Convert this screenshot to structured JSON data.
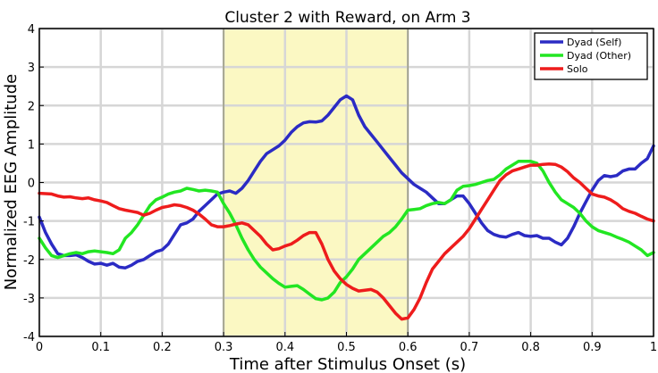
{
  "chart_data": {
    "type": "line",
    "title": "Cluster 2 with Reward, on Arm 3",
    "xlabel": "Time after Stimulus Onset (s)",
    "ylabel": "Normalized EEG Amplitude",
    "xlim": [
      0,
      1
    ],
    "ylim": [
      -4,
      4
    ],
    "x_ticks": [
      0,
      0.1,
      0.2,
      0.3,
      0.4,
      0.5,
      0.6,
      0.7,
      0.8,
      0.9,
      1
    ],
    "x_tick_labels": [
      "0",
      "0.1",
      "0.2",
      "0.3",
      "0.4",
      "0.5",
      "0.6",
      "0.7",
      "0.8",
      "0.9",
      "1"
    ],
    "y_ticks": [
      -4,
      -3,
      -2,
      -1,
      0,
      1,
      2,
      3,
      4
    ],
    "y_tick_labels": [
      "-4",
      "-3",
      "-2",
      "-1",
      "0",
      "1",
      "2",
      "3",
      "4"
    ],
    "grid": true,
    "legend_position": "top-right",
    "highlight_region": {
      "x_start": 0.3,
      "x_end": 0.6,
      "color": "#fbf8c3"
    },
    "series": [
      {
        "name": "Dyad (Self)",
        "color": "#2b2bc4",
        "points": [
          [
            0,
            -0.9
          ],
          [
            0.01,
            -1.3
          ],
          [
            0.02,
            -1.6
          ],
          [
            0.03,
            -1.85
          ],
          [
            0.04,
            -1.9
          ],
          [
            0.05,
            -1.9
          ],
          [
            0.06,
            -1.88
          ],
          [
            0.07,
            -1.95
          ],
          [
            0.08,
            -2.05
          ],
          [
            0.09,
            -2.12
          ],
          [
            0.1,
            -2.1
          ],
          [
            0.11,
            -2.15
          ],
          [
            0.12,
            -2.1
          ],
          [
            0.13,
            -2.2
          ],
          [
            0.14,
            -2.22
          ],
          [
            0.15,
            -2.15
          ],
          [
            0.16,
            -2.05
          ],
          [
            0.17,
            -2.0
          ],
          [
            0.18,
            -1.9
          ],
          [
            0.19,
            -1.8
          ],
          [
            0.2,
            -1.75
          ],
          [
            0.21,
            -1.6
          ],
          [
            0.22,
            -1.35
          ],
          [
            0.23,
            -1.1
          ],
          [
            0.24,
            -1.05
          ],
          [
            0.25,
            -0.95
          ],
          [
            0.26,
            -0.75
          ],
          [
            0.27,
            -0.6
          ],
          [
            0.28,
            -0.45
          ],
          [
            0.29,
            -0.3
          ],
          [
            0.3,
            -0.25
          ],
          [
            0.31,
            -0.22
          ],
          [
            0.32,
            -0.28
          ],
          [
            0.33,
            -0.15
          ],
          [
            0.34,
            0.05
          ],
          [
            0.35,
            0.3
          ],
          [
            0.36,
            0.55
          ],
          [
            0.37,
            0.75
          ],
          [
            0.38,
            0.85
          ],
          [
            0.39,
            0.95
          ],
          [
            0.4,
            1.1
          ],
          [
            0.41,
            1.3
          ],
          [
            0.42,
            1.45
          ],
          [
            0.43,
            1.55
          ],
          [
            0.44,
            1.58
          ],
          [
            0.45,
            1.57
          ],
          [
            0.46,
            1.6
          ],
          [
            0.47,
            1.75
          ],
          [
            0.48,
            1.95
          ],
          [
            0.49,
            2.15
          ],
          [
            0.5,
            2.25
          ],
          [
            0.51,
            2.15
          ],
          [
            0.52,
            1.75
          ],
          [
            0.53,
            1.45
          ],
          [
            0.54,
            1.25
          ],
          [
            0.55,
            1.05
          ],
          [
            0.56,
            0.85
          ],
          [
            0.57,
            0.65
          ],
          [
            0.58,
            0.45
          ],
          [
            0.59,
            0.25
          ],
          [
            0.6,
            0.1
          ],
          [
            0.61,
            -0.05
          ],
          [
            0.62,
            -0.15
          ],
          [
            0.63,
            -0.25
          ],
          [
            0.64,
            -0.4
          ],
          [
            0.65,
            -0.55
          ],
          [
            0.66,
            -0.55
          ],
          [
            0.67,
            -0.45
          ],
          [
            0.68,
            -0.35
          ],
          [
            0.69,
            -0.35
          ],
          [
            0.7,
            -0.55
          ],
          [
            0.71,
            -0.8
          ],
          [
            0.72,
            -1.05
          ],
          [
            0.73,
            -1.25
          ],
          [
            0.74,
            -1.35
          ],
          [
            0.75,
            -1.4
          ],
          [
            0.76,
            -1.42
          ],
          [
            0.77,
            -1.35
          ],
          [
            0.78,
            -1.3
          ],
          [
            0.79,
            -1.38
          ],
          [
            0.8,
            -1.4
          ],
          [
            0.81,
            -1.38
          ],
          [
            0.82,
            -1.45
          ],
          [
            0.83,
            -1.45
          ],
          [
            0.84,
            -1.55
          ],
          [
            0.85,
            -1.62
          ],
          [
            0.86,
            -1.45
          ],
          [
            0.87,
            -1.15
          ],
          [
            0.88,
            -0.8
          ],
          [
            0.89,
            -0.5
          ],
          [
            0.9,
            -0.2
          ],
          [
            0.91,
            0.05
          ],
          [
            0.92,
            0.18
          ],
          [
            0.93,
            0.15
          ],
          [
            0.94,
            0.18
          ],
          [
            0.95,
            0.3
          ],
          [
            0.96,
            0.35
          ],
          [
            0.97,
            0.35
          ],
          [
            0.98,
            0.5
          ],
          [
            0.99,
            0.62
          ],
          [
            1.0,
            0.95
          ]
        ]
      },
      {
        "name": "Dyad (Other)",
        "color": "#22e622",
        "points": [
          [
            0,
            -1.45
          ],
          [
            0.01,
            -1.7
          ],
          [
            0.02,
            -1.9
          ],
          [
            0.03,
            -1.95
          ],
          [
            0.04,
            -1.9
          ],
          [
            0.05,
            -1.85
          ],
          [
            0.06,
            -1.82
          ],
          [
            0.07,
            -1.85
          ],
          [
            0.08,
            -1.8
          ],
          [
            0.09,
            -1.78
          ],
          [
            0.1,
            -1.8
          ],
          [
            0.11,
            -1.82
          ],
          [
            0.12,
            -1.85
          ],
          [
            0.13,
            -1.75
          ],
          [
            0.14,
            -1.45
          ],
          [
            0.15,
            -1.3
          ],
          [
            0.16,
            -1.1
          ],
          [
            0.17,
            -0.85
          ],
          [
            0.18,
            -0.6
          ],
          [
            0.19,
            -0.45
          ],
          [
            0.2,
            -0.38
          ],
          [
            0.21,
            -0.3
          ],
          [
            0.22,
            -0.25
          ],
          [
            0.23,
            -0.22
          ],
          [
            0.24,
            -0.15
          ],
          [
            0.25,
            -0.18
          ],
          [
            0.26,
            -0.22
          ],
          [
            0.27,
            -0.2
          ],
          [
            0.28,
            -0.22
          ],
          [
            0.29,
            -0.25
          ],
          [
            0.3,
            -0.55
          ],
          [
            0.31,
            -0.8
          ],
          [
            0.32,
            -1.1
          ],
          [
            0.33,
            -1.45
          ],
          [
            0.34,
            -1.75
          ],
          [
            0.35,
            -2.0
          ],
          [
            0.36,
            -2.2
          ],
          [
            0.37,
            -2.35
          ],
          [
            0.38,
            -2.5
          ],
          [
            0.39,
            -2.62
          ],
          [
            0.4,
            -2.72
          ],
          [
            0.41,
            -2.7
          ],
          [
            0.42,
            -2.68
          ],
          [
            0.43,
            -2.78
          ],
          [
            0.44,
            -2.9
          ],
          [
            0.45,
            -3.02
          ],
          [
            0.46,
            -3.05
          ],
          [
            0.47,
            -3.0
          ],
          [
            0.48,
            -2.85
          ],
          [
            0.49,
            -2.6
          ],
          [
            0.5,
            -2.45
          ],
          [
            0.51,
            -2.25
          ],
          [
            0.52,
            -2.0
          ],
          [
            0.53,
            -1.85
          ],
          [
            0.54,
            -1.7
          ],
          [
            0.55,
            -1.55
          ],
          [
            0.56,
            -1.4
          ],
          [
            0.57,
            -1.3
          ],
          [
            0.58,
            -1.15
          ],
          [
            0.59,
            -0.95
          ],
          [
            0.6,
            -0.72
          ],
          [
            0.61,
            -0.7
          ],
          [
            0.62,
            -0.68
          ],
          [
            0.63,
            -0.6
          ],
          [
            0.64,
            -0.55
          ],
          [
            0.65,
            -0.52
          ],
          [
            0.66,
            -0.55
          ],
          [
            0.67,
            -0.45
          ],
          [
            0.68,
            -0.2
          ],
          [
            0.69,
            -0.1
          ],
          [
            0.7,
            -0.08
          ],
          [
            0.71,
            -0.05
          ],
          [
            0.72,
            0.0
          ],
          [
            0.73,
            0.05
          ],
          [
            0.74,
            0.08
          ],
          [
            0.75,
            0.2
          ],
          [
            0.76,
            0.35
          ],
          [
            0.77,
            0.45
          ],
          [
            0.78,
            0.55
          ],
          [
            0.79,
            0.55
          ],
          [
            0.8,
            0.55
          ],
          [
            0.81,
            0.5
          ],
          [
            0.82,
            0.3
          ],
          [
            0.83,
            0.0
          ],
          [
            0.84,
            -0.25
          ],
          [
            0.85,
            -0.45
          ],
          [
            0.86,
            -0.55
          ],
          [
            0.87,
            -0.65
          ],
          [
            0.88,
            -0.8
          ],
          [
            0.89,
            -1.0
          ],
          [
            0.9,
            -1.15
          ],
          [
            0.91,
            -1.25
          ],
          [
            0.92,
            -1.3
          ],
          [
            0.93,
            -1.35
          ],
          [
            0.94,
            -1.42
          ],
          [
            0.95,
            -1.48
          ],
          [
            0.96,
            -1.55
          ],
          [
            0.97,
            -1.65
          ],
          [
            0.98,
            -1.75
          ],
          [
            0.99,
            -1.9
          ],
          [
            1.0,
            -1.82
          ]
        ]
      },
      {
        "name": "Solo",
        "color": "#ee1c1c",
        "points": [
          [
            0,
            -0.28
          ],
          [
            0.02,
            -0.3
          ],
          [
            0.03,
            -0.35
          ],
          [
            0.04,
            -0.38
          ],
          [
            0.05,
            -0.37
          ],
          [
            0.06,
            -0.4
          ],
          [
            0.07,
            -0.42
          ],
          [
            0.08,
            -0.4
          ],
          [
            0.09,
            -0.45
          ],
          [
            0.1,
            -0.48
          ],
          [
            0.11,
            -0.52
          ],
          [
            0.12,
            -0.6
          ],
          [
            0.13,
            -0.68
          ],
          [
            0.14,
            -0.72
          ],
          [
            0.15,
            -0.75
          ],
          [
            0.16,
            -0.78
          ],
          [
            0.17,
            -0.85
          ],
          [
            0.18,
            -0.8
          ],
          [
            0.19,
            -0.72
          ],
          [
            0.2,
            -0.65
          ],
          [
            0.21,
            -0.62
          ],
          [
            0.22,
            -0.58
          ],
          [
            0.23,
            -0.6
          ],
          [
            0.24,
            -0.65
          ],
          [
            0.25,
            -0.72
          ],
          [
            0.26,
            -0.82
          ],
          [
            0.27,
            -0.95
          ],
          [
            0.28,
            -1.1
          ],
          [
            0.29,
            -1.15
          ],
          [
            0.3,
            -1.15
          ],
          [
            0.31,
            -1.12
          ],
          [
            0.32,
            -1.08
          ],
          [
            0.33,
            -1.05
          ],
          [
            0.34,
            -1.1
          ],
          [
            0.35,
            -1.25
          ],
          [
            0.36,
            -1.4
          ],
          [
            0.37,
            -1.6
          ],
          [
            0.38,
            -1.75
          ],
          [
            0.39,
            -1.72
          ],
          [
            0.4,
            -1.65
          ],
          [
            0.41,
            -1.6
          ],
          [
            0.42,
            -1.5
          ],
          [
            0.43,
            -1.38
          ],
          [
            0.44,
            -1.3
          ],
          [
            0.45,
            -1.3
          ],
          [
            0.46,
            -1.6
          ],
          [
            0.47,
            -2.0
          ],
          [
            0.48,
            -2.3
          ],
          [
            0.49,
            -2.5
          ],
          [
            0.5,
            -2.65
          ],
          [
            0.51,
            -2.75
          ],
          [
            0.52,
            -2.82
          ],
          [
            0.53,
            -2.8
          ],
          [
            0.54,
            -2.78
          ],
          [
            0.55,
            -2.85
          ],
          [
            0.56,
            -3.0
          ],
          [
            0.57,
            -3.2
          ],
          [
            0.58,
            -3.4
          ],
          [
            0.59,
            -3.55
          ],
          [
            0.6,
            -3.52
          ],
          [
            0.61,
            -3.3
          ],
          [
            0.62,
            -3.0
          ],
          [
            0.63,
            -2.6
          ],
          [
            0.64,
            -2.25
          ],
          [
            0.65,
            -2.05
          ],
          [
            0.66,
            -1.85
          ],
          [
            0.67,
            -1.7
          ],
          [
            0.68,
            -1.55
          ],
          [
            0.69,
            -1.4
          ],
          [
            0.7,
            -1.2
          ],
          [
            0.71,
            -0.95
          ],
          [
            0.72,
            -0.7
          ],
          [
            0.73,
            -0.45
          ],
          [
            0.74,
            -0.2
          ],
          [
            0.75,
            0.05
          ],
          [
            0.76,
            0.2
          ],
          [
            0.77,
            0.3
          ],
          [
            0.78,
            0.35
          ],
          [
            0.79,
            0.4
          ],
          [
            0.8,
            0.45
          ],
          [
            0.81,
            0.45
          ],
          [
            0.82,
            0.47
          ],
          [
            0.83,
            0.48
          ],
          [
            0.84,
            0.47
          ],
          [
            0.85,
            0.4
          ],
          [
            0.86,
            0.28
          ],
          [
            0.87,
            0.12
          ],
          [
            0.88,
            0.0
          ],
          [
            0.89,
            -0.15
          ],
          [
            0.9,
            -0.3
          ],
          [
            0.91,
            -0.35
          ],
          [
            0.92,
            -0.38
          ],
          [
            0.93,
            -0.45
          ],
          [
            0.94,
            -0.55
          ],
          [
            0.95,
            -0.68
          ],
          [
            0.96,
            -0.75
          ],
          [
            0.97,
            -0.8
          ],
          [
            0.98,
            -0.88
          ],
          [
            0.99,
            -0.95
          ],
          [
            1.0,
            -1.0
          ]
        ]
      }
    ]
  }
}
